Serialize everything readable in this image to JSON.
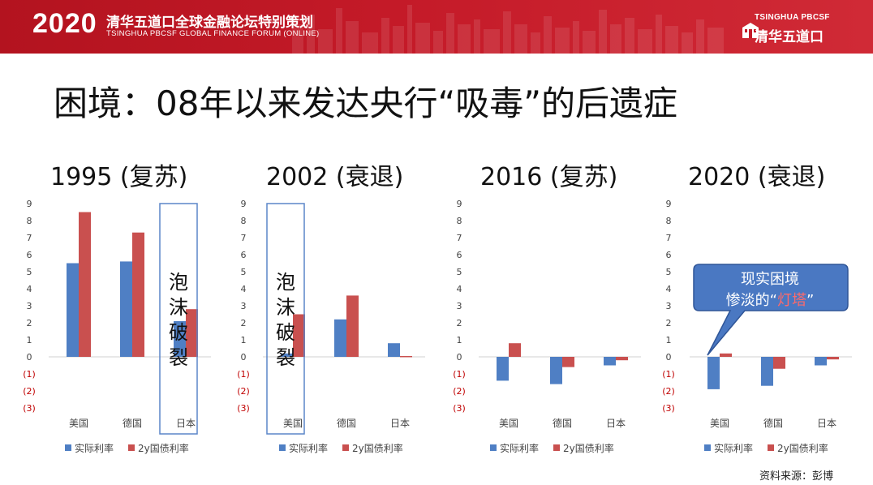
{
  "header": {
    "year": "2020",
    "title_cn": "清华五道口全球金融论坛特别策划",
    "title_en": "TSINGHUA PBCSF GLOBAL FINANCE FORUM (ONLINE)",
    "logo_en": "TSINGHUA PBCSF",
    "logo_cn": "清华五道口"
  },
  "slide": {
    "title": "困境：08年以来发达央行“吸毒”的后遗症",
    "source": "资料来源：彭博"
  },
  "colors": {
    "banner": "#c41a28",
    "series_real": "#4f7fc4",
    "series_bond": "#c9504f",
    "callout": "#4a78c2",
    "negative_tick": "#c00000"
  },
  "bubble_text": [
    "泡",
    "沫",
    "破",
    "裂"
  ],
  "callout": {
    "line1": "现实困境",
    "line2_prefix": "惨淡的",
    "line2_quote_open": "“",
    "line2_highlight": "灯塔",
    "line2_quote_close": "”"
  },
  "chart_data": [
    {
      "type": "bar",
      "title": "1995 (复苏)",
      "categories": [
        "美国",
        "德国",
        "日本"
      ],
      "series": [
        {
          "name": "实际利率",
          "values": [
            5.5,
            5.6,
            2.1
          ]
        },
        {
          "name": "2y国债利率",
          "values": [
            8.5,
            7.3,
            2.8
          ]
        }
      ],
      "ylim": [
        -3,
        9
      ],
      "yticks": [
        "9",
        "8",
        "7",
        "6",
        "5",
        "4",
        "3",
        "2",
        "1",
        "0",
        "(1)",
        "(2)",
        "(3)"
      ],
      "legend": "bottom",
      "grid": false,
      "annotation": {
        "text": "泡沫破裂",
        "category_index": 2
      }
    },
    {
      "type": "bar",
      "title": "2002 (衰退)",
      "categories": [
        "美国",
        "德国",
        "日本"
      ],
      "series": [
        {
          "name": "实际利率",
          "values": [
            0.2,
            2.2,
            0.8
          ]
        },
        {
          "name": "2y国债利率",
          "values": [
            2.5,
            3.6,
            0.05
          ]
        }
      ],
      "ylim": [
        -3,
        9
      ],
      "yticks": [
        "9",
        "8",
        "7",
        "6",
        "5",
        "4",
        "3",
        "2",
        "1",
        "0",
        "(1)",
        "(2)",
        "(3)"
      ],
      "legend": "bottom",
      "grid": false,
      "annotation": {
        "text": "泡沫破裂",
        "category_index": 0
      }
    },
    {
      "type": "bar",
      "title": "2016 (复苏)",
      "categories": [
        "美国",
        "德国",
        "日本"
      ],
      "series": [
        {
          "name": "实际利率",
          "values": [
            -1.4,
            -1.6,
            -0.5
          ]
        },
        {
          "name": "2y国债利率",
          "values": [
            0.8,
            -0.6,
            -0.2
          ]
        }
      ],
      "ylim": [
        -3,
        9
      ],
      "yticks": [
        "9",
        "8",
        "7",
        "6",
        "5",
        "4",
        "3",
        "2",
        "1",
        "0",
        "(1)",
        "(2)",
        "(3)"
      ],
      "legend": "bottom",
      "grid": false
    },
    {
      "type": "bar",
      "title": "2020 (衰退)",
      "categories": [
        "美国",
        "德国",
        "日本"
      ],
      "series": [
        {
          "name": "实际利率",
          "values": [
            -1.9,
            -1.7,
            -0.5
          ]
        },
        {
          "name": "2y国债利率",
          "values": [
            0.2,
            -0.7,
            -0.15
          ]
        }
      ],
      "ylim": [
        -3,
        9
      ],
      "yticks": [
        "9",
        "8",
        "7",
        "6",
        "5",
        "4",
        "3",
        "2",
        "1",
        "0",
        "(1)",
        "(2)",
        "(3)"
      ],
      "legend": "bottom",
      "grid": false
    }
  ]
}
